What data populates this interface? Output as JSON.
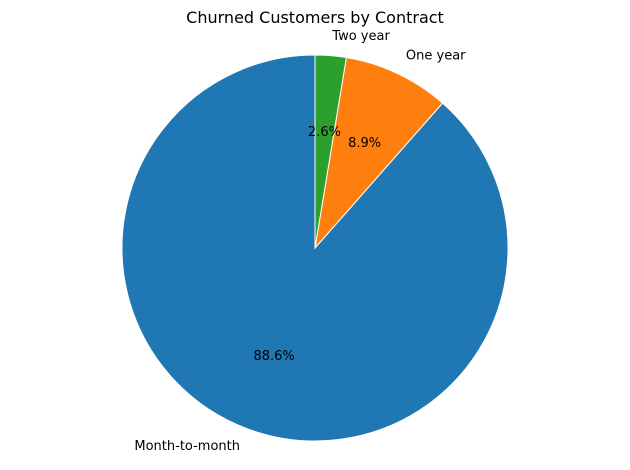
{
  "chart_data": {
    "type": "pie",
    "title": "Churned Customers by Contract",
    "categories": [
      "Month-to-month",
      "One year",
      "Two year"
    ],
    "values": [
      88.6,
      8.9,
      2.6
    ],
    "value_labels": [
      "88.6%",
      "8.9%",
      "2.6%"
    ],
    "colors": [
      "#1f77b4",
      "#ff7f0e",
      "#2ca02c"
    ],
    "start_angle_deg": 90,
    "direction": "counterclockwise",
    "legend": "none"
  }
}
